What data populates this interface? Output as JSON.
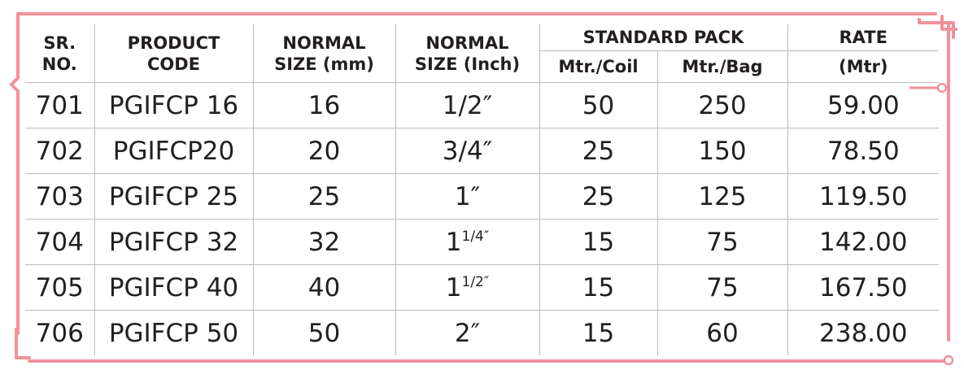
{
  "headers": {
    "sr_no": "SR.\nNO.",
    "product_code": "PRODUCT\nCODE",
    "normal_size_mm": "NORMAL\nSIZE (mm)",
    "normal_size_inch": "NORMAL\nSIZE (Inch)",
    "standard_pack": "STANDARD PACK",
    "mtr_coil": "Mtr./Coil",
    "mtr_bag": "Mtr./Bag",
    "rate": "RATE",
    "rate_unit": "(Mtr)"
  },
  "rows": [
    {
      "sr": "701",
      "code": "PGIFCP 16",
      "mm": "16",
      "inch_whole": "",
      "inch_frac": "",
      "inch": "1/2″",
      "coil": "50",
      "bag": "250",
      "rate": "59.00"
    },
    {
      "sr": "702",
      "code": "PGIFCP20",
      "mm": "20",
      "inch_whole": "",
      "inch_frac": "",
      "inch": "3/4″",
      "coil": "25",
      "bag": "150",
      "rate": "78.50"
    },
    {
      "sr": "703",
      "code": "PGIFCP 25",
      "mm": "25",
      "inch_whole": "",
      "inch_frac": "",
      "inch": "1″",
      "coil": "25",
      "bag": "125",
      "rate": "119.50"
    },
    {
      "sr": "704",
      "code": "PGIFCP 32",
      "mm": "32",
      "inch_whole": "1",
      "inch_frac": "1/4″",
      "inch": "",
      "coil": "15",
      "bag": "75",
      "rate": "142.00"
    },
    {
      "sr": "705",
      "code": "PGIFCP 40",
      "mm": "40",
      "inch_whole": "1",
      "inch_frac": "1/2″",
      "inch": "",
      "coil": "15",
      "bag": "75",
      "rate": "167.50"
    },
    {
      "sr": "706",
      "code": "PGIFCP 50",
      "mm": "50",
      "inch_whole": "",
      "inch_frac": "",
      "inch": "2″",
      "coil": "15",
      "bag": "60",
      "rate": "238.00"
    }
  ],
  "colors": {
    "frame": "#f0919b",
    "grid": "#bdbbbc",
    "text": "#231f20"
  }
}
